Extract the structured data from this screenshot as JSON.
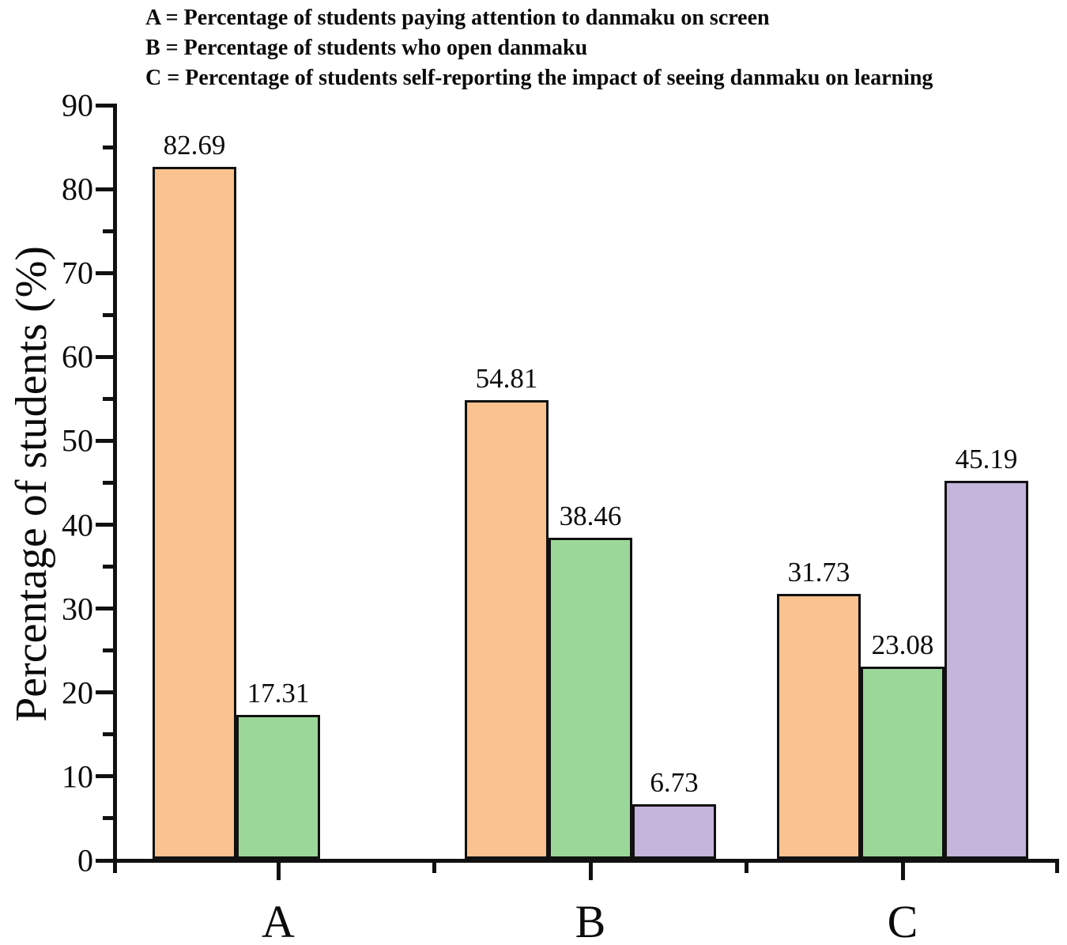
{
  "legend": {
    "line1": "A = Percentage of students paying attention to danmaku on screen",
    "line2": "B = Percentage of students who open danmaku",
    "line3": "C = Percentage of students self-reporting the impact of seeing danmaku on learning"
  },
  "chart_data": {
    "type": "bar",
    "title": "",
    "xlabel": "",
    "ylabel": "Percentage of students (%)",
    "categories": [
      "A",
      "B",
      "C"
    ],
    "series": [
      {
        "name": "orange",
        "color": "#FAC28E",
        "values": [
          82.69,
          54.81,
          31.73
        ]
      },
      {
        "name": "green",
        "color": "#9CD79A",
        "values": [
          17.31,
          38.46,
          23.08
        ]
      },
      {
        "name": "purple",
        "color": "#C5B4DB",
        "values": [
          null,
          6.73,
          45.19
        ]
      }
    ],
    "value_labels": [
      "82.69",
      "54.81",
      "31.73",
      "17.31",
      "38.46",
      "23.08",
      "6.73",
      "45.19"
    ],
    "ylim": [
      0,
      90
    ],
    "y_major_ticks": [
      0,
      10,
      20,
      30,
      40,
      50,
      60,
      70,
      80,
      90
    ],
    "y_minor_ticks": [
      5,
      15,
      25,
      35,
      45,
      55,
      65,
      75,
      85
    ],
    "grid": false,
    "bar_outline": "#111111",
    "axis_color": "#111111",
    "legend_position": "top-left-text"
  }
}
